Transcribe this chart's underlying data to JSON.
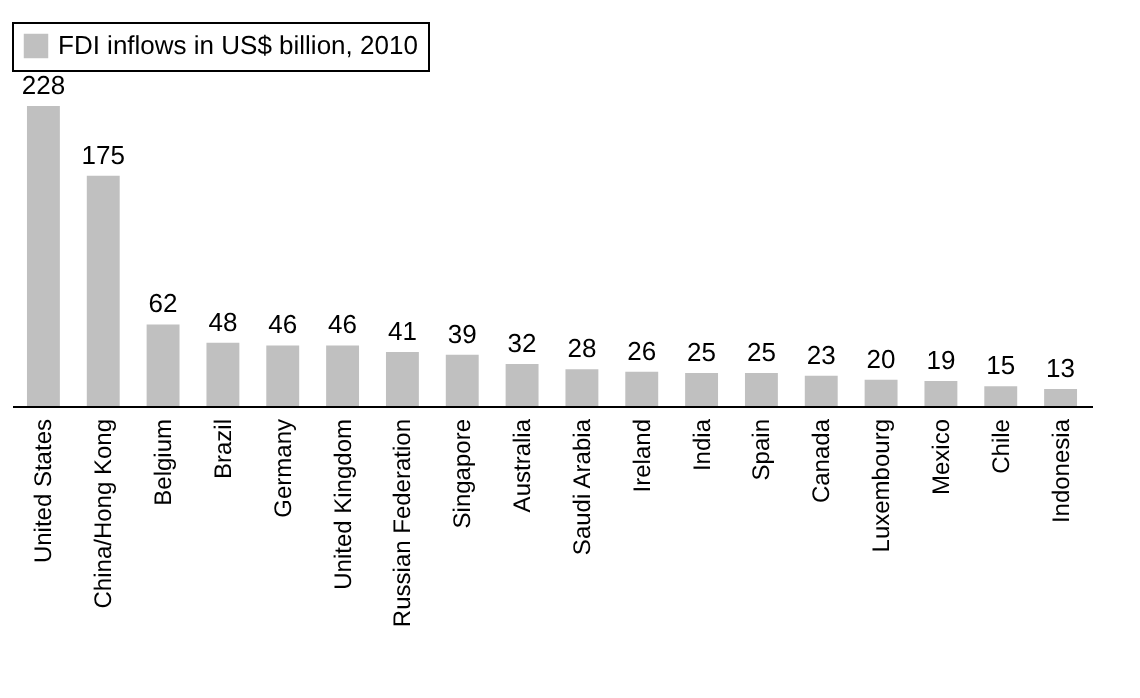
{
  "chart_data": {
    "type": "bar",
    "categories": [
      "United States",
      "China/Hong Kong",
      "Belgium",
      "Brazil",
      "Germany",
      "United Kingdom",
      "Russian Federation",
      "Singapore",
      "Australia",
      "Saudi Arabia",
      "Ireland",
      "India",
      "Spain",
      "Canada",
      "Luxembourg",
      "Mexico",
      "Chile",
      "Indonesia"
    ],
    "series": [
      {
        "name": "FDI inflows in US$ billion, 2010",
        "color": "#c0c0c0",
        "values": [
          228,
          175,
          62,
          48,
          46,
          46,
          41,
          39,
          32,
          28,
          26,
          25,
          25,
          23,
          20,
          19,
          15,
          13
        ]
      }
    ],
    "data_labels": true,
    "legend": "top"
  }
}
